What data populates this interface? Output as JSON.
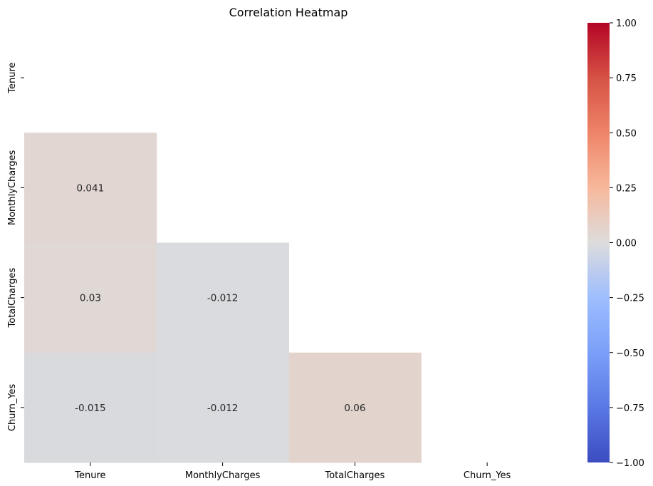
{
  "chart_data": {
    "type": "heatmap",
    "title": "Correlation Heatmap",
    "variables": [
      "Tenure",
      "MonthlyCharges",
      "TotalCharges",
      "Churn_Yes"
    ],
    "x_tick_labels": [
      "Tenure",
      "MonthlyCharges",
      "TotalCharges",
      "Churn_Yes"
    ],
    "y_tick_labels": [
      "Tenure",
      "MonthlyCharges",
      "TotalCharges",
      "Churn_Yes"
    ],
    "mask": "upper-triangle-including-diagonal",
    "cells": [
      {
        "row": "MonthlyCharges",
        "col": "Tenure",
        "value": 0.041,
        "label": "0.041"
      },
      {
        "row": "TotalCharges",
        "col": "Tenure",
        "value": 0.03,
        "label": "0.03"
      },
      {
        "row": "TotalCharges",
        "col": "MonthlyCharges",
        "value": -0.012,
        "label": "-0.012"
      },
      {
        "row": "Churn_Yes",
        "col": "Tenure",
        "value": -0.015,
        "label": "-0.015"
      },
      {
        "row": "Churn_Yes",
        "col": "MonthlyCharges",
        "value": -0.012,
        "label": "-0.012"
      },
      {
        "row": "Churn_Yes",
        "col": "TotalCharges",
        "value": 0.06,
        "label": "0.06"
      }
    ],
    "colormap": "coolwarm",
    "colorbar": {
      "vmin": -1.0,
      "vmax": 1.0,
      "ticks": [
        -1.0,
        -0.75,
        -0.5,
        -0.25,
        0.0,
        0.25,
        0.5,
        0.75,
        1.0
      ],
      "tick_labels": [
        "−1.00",
        "−0.75",
        "−0.50",
        "−0.25",
        "0.00",
        "0.25",
        "0.50",
        "0.75",
        "1.00"
      ]
    }
  }
}
